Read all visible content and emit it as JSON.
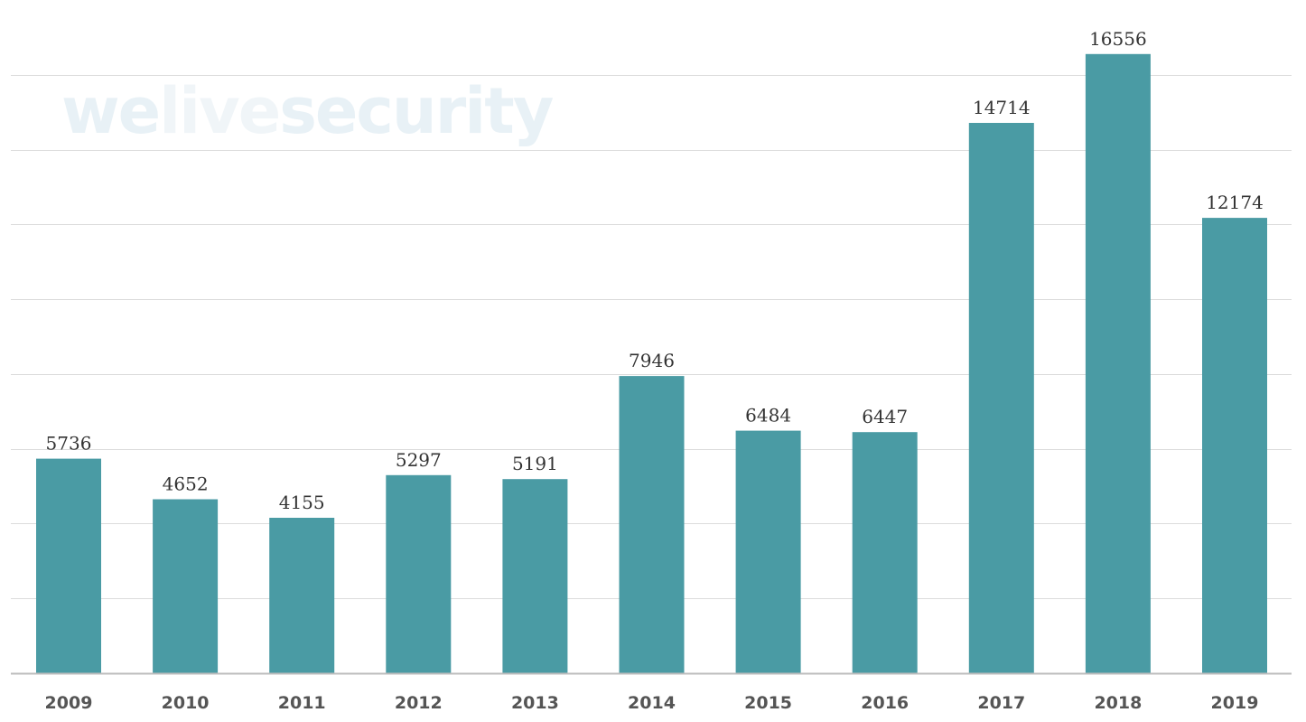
{
  "watermark": {
    "part1": "we",
    "part2": "live",
    "part3": "security"
  },
  "colors": {
    "bar": "#4a9ba4",
    "grid": "#dcdcdc",
    "axis": "#bdbdbd"
  },
  "chart_data": {
    "type": "bar",
    "title": "",
    "xlabel": "",
    "ylabel": "",
    "ylim": [
      0,
      18000
    ],
    "grid": true,
    "categories": [
      "2009",
      "2010",
      "2011",
      "2012",
      "2013",
      "2014",
      "2015",
      "2016",
      "2017",
      "2018",
      "2019"
    ],
    "values": [
      5736,
      4652,
      4155,
      5297,
      5191,
      7946,
      6484,
      6447,
      14714,
      16556,
      12174
    ],
    "data_labels": [
      "5736",
      "4652",
      "4155",
      "5297",
      "5191",
      "7946",
      "6484",
      "6447",
      "14714",
      "16556",
      "12174"
    ]
  }
}
